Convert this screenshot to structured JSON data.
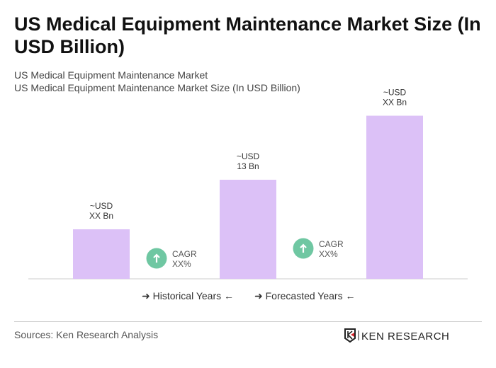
{
  "title": "US Medical Equipment Maintenance Market Size (In USD Billion)",
  "subtitle1": "US Medical Equipment Maintenance Market",
  "subtitle2": "US Medical Equipment Maintenance Market Size (In USD Billion)",
  "legend": {
    "historical": "Historical Years",
    "forecasted": "Forecasted Years"
  },
  "source": "Sources: Ken Research Analysis",
  "logo_text": "KEN RESEARCH",
  "colors": {
    "bar": "#dcc1f7",
    "cagr": "#6fc7a2",
    "axis": "#cccccc"
  },
  "chart_data": {
    "type": "bar",
    "categories": [
      "",
      "",
      ""
    ],
    "values": [
      6.5,
      13,
      21.4
    ],
    "data_labels": [
      [
        "~USD",
        "XX Bn"
      ],
      [
        "~USD",
        "13 Bn"
      ],
      [
        "~USD",
        "XX Bn"
      ]
    ],
    "cagr": [
      [
        "CAGR",
        "XX%"
      ],
      [
        "CAGR",
        "XX%"
      ]
    ],
    "ylim": [
      0,
      22
    ],
    "grid": false
  }
}
